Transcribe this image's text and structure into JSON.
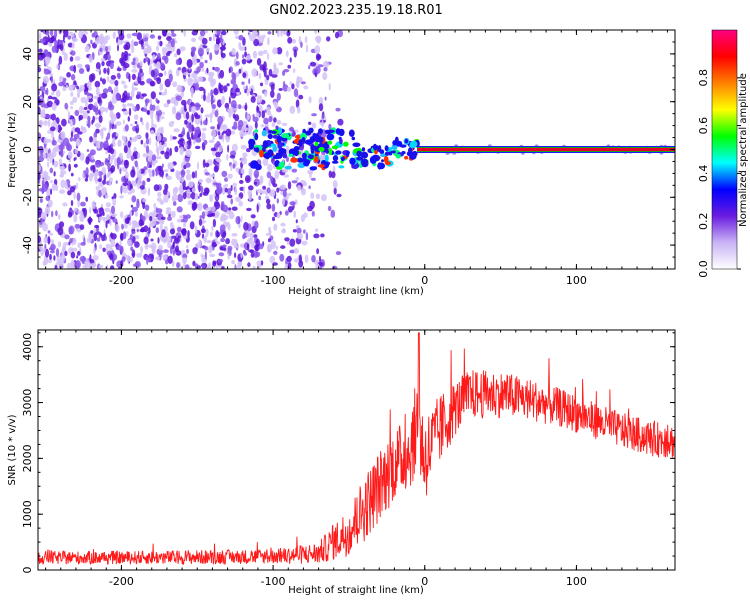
{
  "title": "GN02.2023.235.19.18.R01",
  "colors": {
    "trace": "#ff1a1a",
    "speckle": "#5a00e0",
    "line_core": "#e8002a",
    "line_edge": "#1aa61a"
  },
  "colorbar": {
    "label": "Normalized spectral amplitude",
    "range": [
      0,
      1
    ],
    "ticks": [
      "0.0",
      "0.2",
      "0.4",
      "0.6",
      "0.8"
    ],
    "colormap": [
      "#ffffff",
      "#c9b3f5",
      "#6a1be0",
      "#0000ff",
      "#00ffff",
      "#00ff00",
      "#ffff00",
      "#ff8000",
      "#ff0000",
      "#ff0080"
    ]
  },
  "chart_data": [
    {
      "type": "heatmap",
      "xlabel": "Height of straight line (km)",
      "ylabel": "Frequency (Hz)",
      "xlim": [
        -255,
        165
      ],
      "ylim": [
        -50,
        50
      ],
      "xticks": [
        -200,
        -100,
        0,
        100
      ],
      "yticks": [
        -40,
        -20,
        0,
        20,
        40
      ],
      "xtick_labels": [
        "-200",
        "-100",
        "0",
        "100"
      ],
      "ytick_labels": [
        "-40",
        "-20",
        "0",
        "20",
        "40"
      ],
      "grid": false,
      "description_features": {
        "noise_region_x": [
          -255,
          -80
        ],
        "tone_start_x": -5,
        "tone_frequency": 0,
        "tone_amplitude": 0.95,
        "transition_x": [
          -80,
          -5
        ]
      }
    },
    {
      "type": "line",
      "xlabel": "Height of straight line (km)",
      "ylabel": "SNR (10 * v/v)",
      "xlim": [
        -255,
        165
      ],
      "ylim": [
        0,
        4300
      ],
      "xticks": [
        -200,
        -100,
        0,
        100
      ],
      "yticks": [
        0,
        1000,
        2000,
        3000,
        4000
      ],
      "xtick_labels": [
        "-200",
        "-100",
        "0",
        "100"
      ],
      "ytick_labels": [
        "0",
        "1000",
        "2000",
        "3000",
        "4000"
      ],
      "grid": false,
      "series": [
        {
          "x": [
            -255,
            -200,
            -150,
            -100,
            -70,
            -50,
            -40,
            -30,
            -20,
            -10,
            -5,
            0,
            10,
            20,
            30,
            50,
            70,
            90,
            110,
            130,
            150,
            165
          ],
          "y": [
            220,
            220,
            230,
            240,
            300,
            700,
            1100,
            1500,
            1900,
            2100,
            2600,
            2000,
            2500,
            2900,
            3150,
            3150,
            3050,
            2900,
            2700,
            2500,
            2350,
            2300
          ],
          "spread": [
            120,
            120,
            130,
            130,
            200,
            450,
            600,
            650,
            650,
            650,
            900,
            800,
            650,
            500,
            450,
            420,
            380,
            350,
            330,
            320,
            320,
            320
          ]
        }
      ]
    }
  ]
}
